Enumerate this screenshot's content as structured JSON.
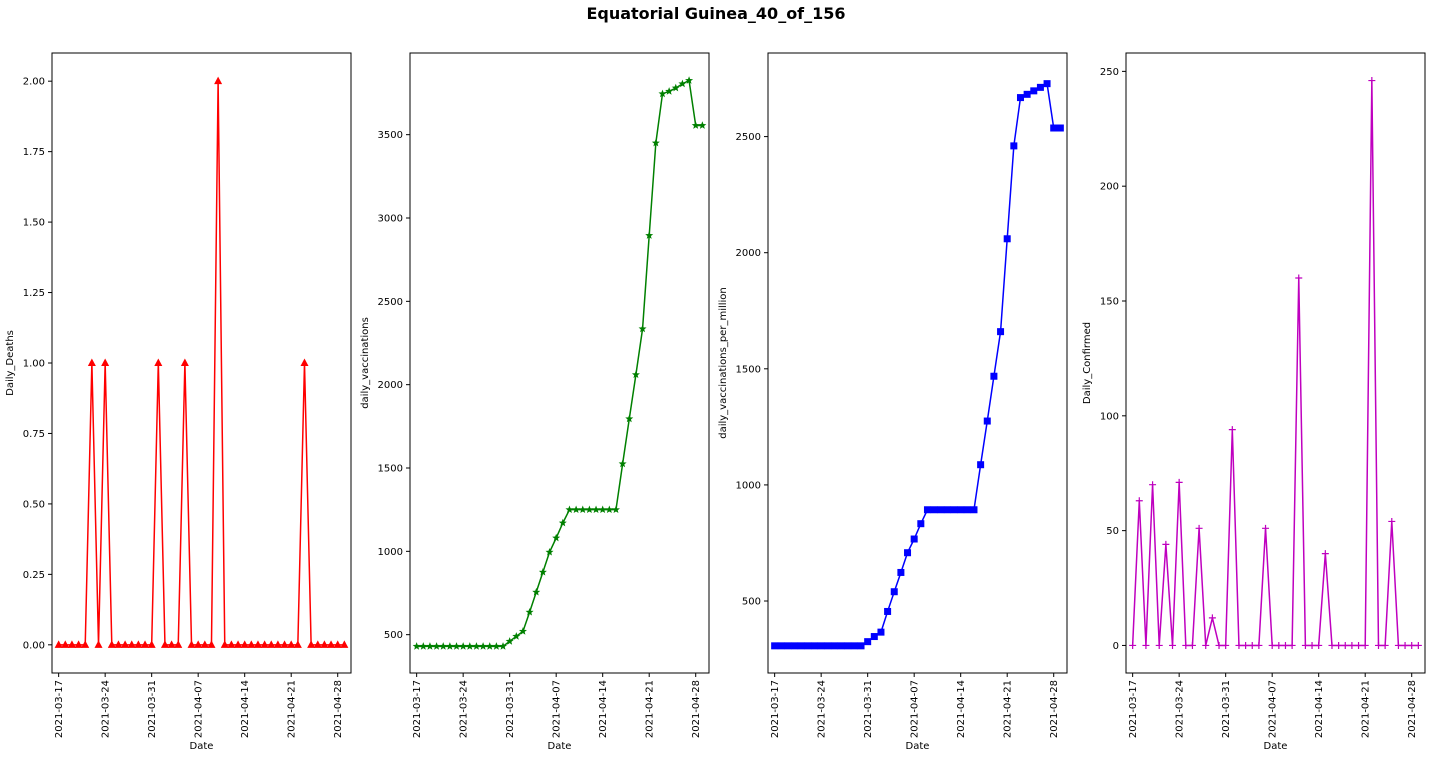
{
  "title": "Equatorial Guinea_40_of_156",
  "chart_data": [
    {
      "type": "line",
      "xlabel": "Date",
      "ylabel": "Daily_Deaths",
      "color": "#ff0000",
      "marker": "triangle",
      "ylim": [
        -0.1,
        2.1
      ],
      "yticks": [
        0.0,
        0.25,
        0.5,
        0.75,
        1.0,
        1.25,
        1.5,
        1.75,
        2.0
      ],
      "ytick_labels": [
        "0.00",
        "0.25",
        "0.50",
        "0.75",
        "1.00",
        "1.25",
        "1.50",
        "1.75",
        "2.00"
      ],
      "xlim": [
        "2021-03-16",
        "2021-04-30"
      ],
      "xticks": [
        "2021-03-17",
        "2021-03-24",
        "2021-03-31",
        "2021-04-07",
        "2021-04-14",
        "2021-04-21",
        "2021-04-28"
      ],
      "x": [
        "2021-03-17",
        "2021-03-18",
        "2021-03-19",
        "2021-03-20",
        "2021-03-21",
        "2021-03-22",
        "2021-03-23",
        "2021-03-24",
        "2021-03-25",
        "2021-03-26",
        "2021-03-27",
        "2021-03-28",
        "2021-03-29",
        "2021-03-30",
        "2021-03-31",
        "2021-04-01",
        "2021-04-02",
        "2021-04-03",
        "2021-04-04",
        "2021-04-05",
        "2021-04-06",
        "2021-04-07",
        "2021-04-08",
        "2021-04-09",
        "2021-04-10",
        "2021-04-11",
        "2021-04-12",
        "2021-04-13",
        "2021-04-14",
        "2021-04-15",
        "2021-04-16",
        "2021-04-17",
        "2021-04-18",
        "2021-04-19",
        "2021-04-20",
        "2021-04-21",
        "2021-04-22",
        "2021-04-23",
        "2021-04-24",
        "2021-04-25",
        "2021-04-26",
        "2021-04-27",
        "2021-04-28",
        "2021-04-29"
      ],
      "y": [
        0,
        0,
        0,
        0,
        0,
        1,
        0,
        1,
        0,
        0,
        0,
        0,
        0,
        0,
        0,
        1,
        0,
        0,
        0,
        1,
        0,
        0,
        0,
        0,
        2,
        0,
        0,
        0,
        0,
        0,
        0,
        0,
        0,
        0,
        0,
        0,
        0,
        1,
        0,
        0,
        0,
        0,
        0,
        0
      ]
    },
    {
      "type": "line",
      "xlabel": "Date",
      "ylabel": "daily_vaccinations",
      "color": "#008000",
      "marker": "star",
      "ylim": [
        270,
        3990
      ],
      "yticks": [
        500,
        1000,
        1500,
        2000,
        2500,
        3000,
        3500
      ],
      "ytick_labels": [
        "500",
        "1000",
        "1500",
        "2000",
        "2500",
        "3000",
        "3500"
      ],
      "xlim": [
        "2021-03-16",
        "2021-04-30"
      ],
      "xticks": [
        "2021-03-17",
        "2021-03-24",
        "2021-03-31",
        "2021-04-07",
        "2021-04-14",
        "2021-04-21",
        "2021-04-28"
      ],
      "x": [
        "2021-03-17",
        "2021-03-18",
        "2021-03-19",
        "2021-03-20",
        "2021-03-21",
        "2021-03-22",
        "2021-03-23",
        "2021-03-24",
        "2021-03-25",
        "2021-03-26",
        "2021-03-27",
        "2021-03-28",
        "2021-03-29",
        "2021-03-30",
        "2021-03-31",
        "2021-04-01",
        "2021-04-02",
        "2021-04-03",
        "2021-04-04",
        "2021-04-05",
        "2021-04-06",
        "2021-04-07",
        "2021-04-08",
        "2021-04-09",
        "2021-04-10",
        "2021-04-11",
        "2021-04-12",
        "2021-04-13",
        "2021-04-14",
        "2021-04-15",
        "2021-04-16",
        "2021-04-17",
        "2021-04-18",
        "2021-04-19",
        "2021-04-20",
        "2021-04-21",
        "2021-04-22",
        "2021-04-23",
        "2021-04-24",
        "2021-04-25",
        "2021-04-26",
        "2021-04-27",
        "2021-04-28",
        "2021-04-29"
      ],
      "y": [
        430,
        430,
        430,
        430,
        430,
        430,
        430,
        430,
        430,
        430,
        430,
        430,
        430,
        430,
        460,
        490,
        520,
        635,
        755,
        875,
        995,
        1080,
        1170,
        1250,
        1250,
        1250,
        1250,
        1250,
        1250,
        1250,
        1250,
        1525,
        1795,
        2060,
        2335,
        2895,
        3450,
        3745,
        3760,
        3780,
        3805,
        3825,
        3555,
        3555
      ]
    },
    {
      "type": "line",
      "xlabel": "Date",
      "ylabel": "daily_vaccinations_per_million",
      "color": "#0000ff",
      "marker": "square",
      "ylim": [
        190,
        2860
      ],
      "yticks": [
        500,
        1000,
        1500,
        2000,
        2500
      ],
      "ytick_labels": [
        "500",
        "1000",
        "1500",
        "2000",
        "2500"
      ],
      "xlim": [
        "2021-03-16",
        "2021-04-30"
      ],
      "xticks": [
        "2021-03-17",
        "2021-03-24",
        "2021-03-31",
        "2021-04-07",
        "2021-04-14",
        "2021-04-21",
        "2021-04-28"
      ],
      "x": [
        "2021-03-17",
        "2021-03-18",
        "2021-03-19",
        "2021-03-20",
        "2021-03-21",
        "2021-03-22",
        "2021-03-23",
        "2021-03-24",
        "2021-03-25",
        "2021-03-26",
        "2021-03-27",
        "2021-03-28",
        "2021-03-29",
        "2021-03-30",
        "2021-03-31",
        "2021-04-01",
        "2021-04-02",
        "2021-04-03",
        "2021-04-04",
        "2021-04-05",
        "2021-04-06",
        "2021-04-07",
        "2021-04-08",
        "2021-04-09",
        "2021-04-10",
        "2021-04-11",
        "2021-04-12",
        "2021-04-13",
        "2021-04-14",
        "2021-04-15",
        "2021-04-16",
        "2021-04-17",
        "2021-04-18",
        "2021-04-19",
        "2021-04-20",
        "2021-04-21",
        "2021-04-22",
        "2021-04-23",
        "2021-04-24",
        "2021-04-25",
        "2021-04-26",
        "2021-04-27",
        "2021-04-28",
        "2021-04-29"
      ],
      "y": [
        307,
        307,
        307,
        307,
        307,
        307,
        307,
        307,
        307,
        307,
        307,
        307,
        307,
        307,
        325,
        347,
        366,
        455,
        540,
        623,
        708,
        767,
        833,
        893,
        893,
        893,
        893,
        893,
        893,
        893,
        893,
        1087,
        1275,
        1468,
        1660,
        2060,
        2460,
        2668,
        2682,
        2697,
        2712,
        2728,
        2537,
        2537
      ]
    },
    {
      "type": "line",
      "xlabel": "Date",
      "ylabel": "Daily_Confirmed",
      "color": "#bf00bf",
      "marker": "plus",
      "ylim": [
        -12,
        258
      ],
      "yticks": [
        0,
        50,
        100,
        150,
        200,
        250
      ],
      "ytick_labels": [
        "0",
        "50",
        "100",
        "150",
        "200",
        "250"
      ],
      "xlim": [
        "2021-03-16",
        "2021-04-30"
      ],
      "xticks": [
        "2021-03-17",
        "2021-03-24",
        "2021-03-31",
        "2021-04-07",
        "2021-04-14",
        "2021-04-21",
        "2021-04-28"
      ],
      "x": [
        "2021-03-17",
        "2021-03-18",
        "2021-03-19",
        "2021-03-20",
        "2021-03-21",
        "2021-03-22",
        "2021-03-23",
        "2021-03-24",
        "2021-03-25",
        "2021-03-26",
        "2021-03-27",
        "2021-03-28",
        "2021-03-29",
        "2021-03-30",
        "2021-03-31",
        "2021-04-01",
        "2021-04-02",
        "2021-04-03",
        "2021-04-04",
        "2021-04-05",
        "2021-04-06",
        "2021-04-07",
        "2021-04-08",
        "2021-04-09",
        "2021-04-10",
        "2021-04-11",
        "2021-04-12",
        "2021-04-13",
        "2021-04-14",
        "2021-04-15",
        "2021-04-16",
        "2021-04-17",
        "2021-04-18",
        "2021-04-19",
        "2021-04-20",
        "2021-04-21",
        "2021-04-22",
        "2021-04-23",
        "2021-04-24",
        "2021-04-25",
        "2021-04-26",
        "2021-04-27",
        "2021-04-28",
        "2021-04-29"
      ],
      "y": [
        0,
        63,
        0,
        70,
        0,
        44,
        0,
        71,
        0,
        0,
        51,
        0,
        12,
        0,
        0,
        94,
        0,
        0,
        0,
        0,
        51,
        0,
        0,
        0,
        0,
        160,
        0,
        0,
        0,
        40,
        0,
        0,
        0,
        0,
        0,
        0,
        246,
        0,
        0,
        54,
        0,
        0,
        0,
        0
      ]
    }
  ]
}
